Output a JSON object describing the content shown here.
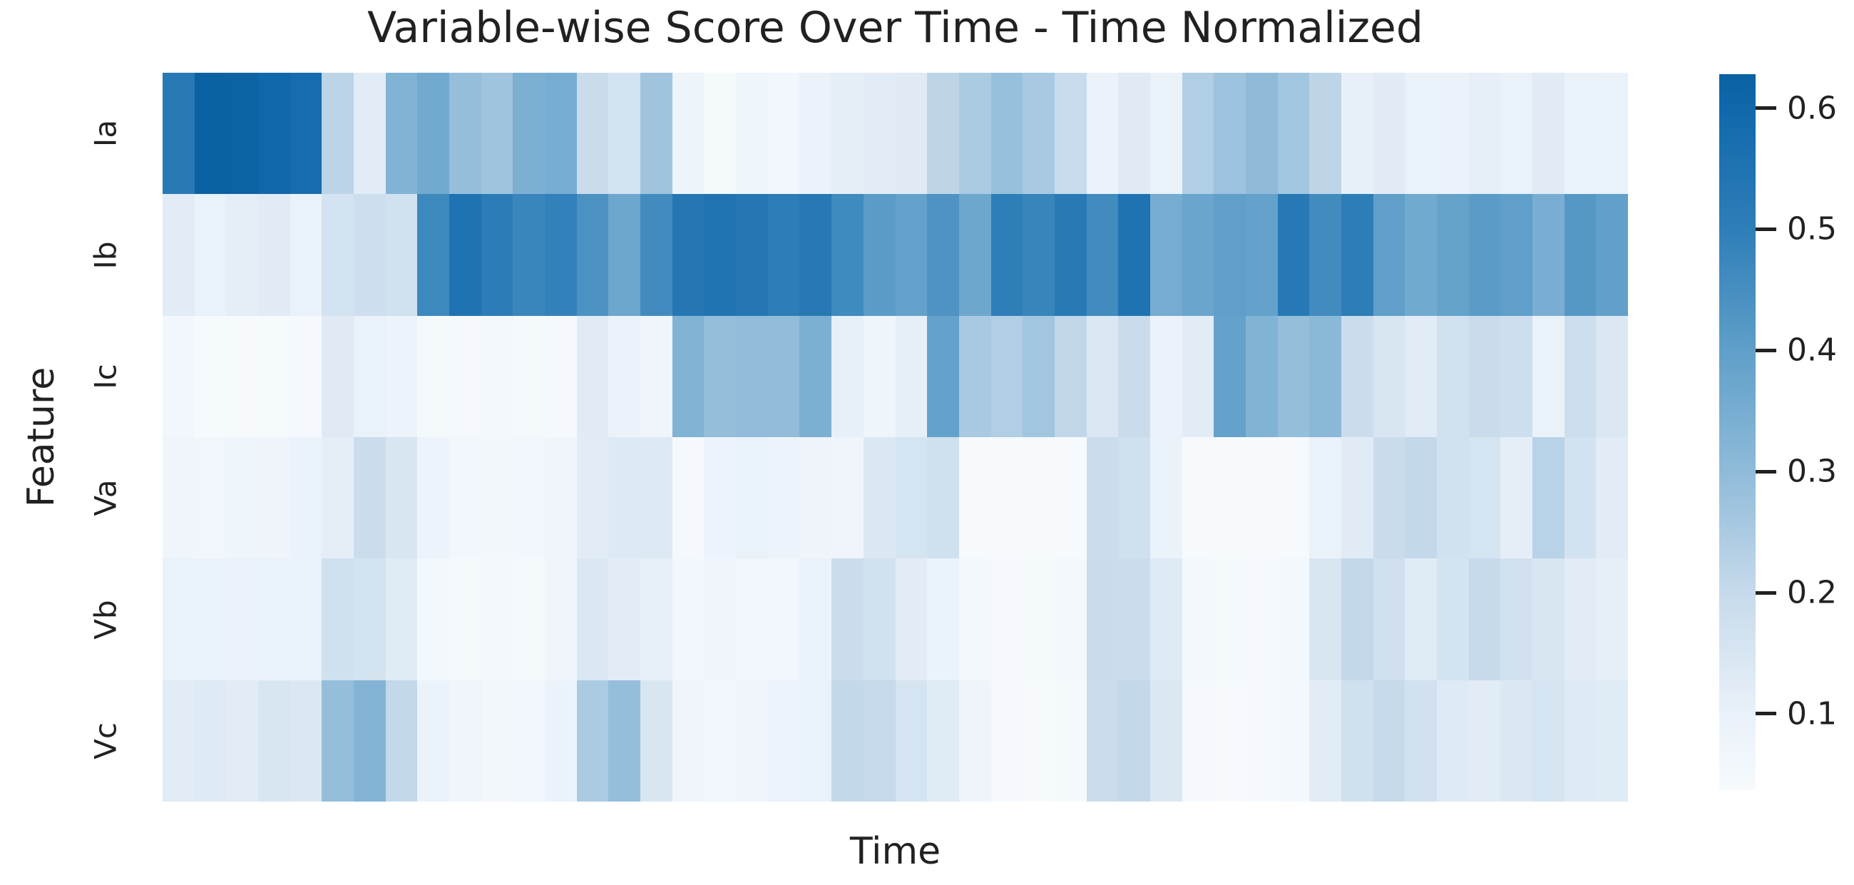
{
  "chart_data": {
    "type": "heatmap",
    "title": "Variable-wise Score Over Time - Time Normalized",
    "xlabel": "Time",
    "ylabel": "Feature",
    "rows": [
      "Ia",
      "Ib",
      "Ic",
      "Va",
      "Vb",
      "Vc"
    ],
    "n_time_steps": 46,
    "x_tick_labels": [],
    "grid": false,
    "colormap": "Blues",
    "vmin": 0.037,
    "vmax": 0.628,
    "series": [
      {
        "name": "Ia",
        "values": [
          0.52,
          0.63,
          0.625,
          0.6,
          0.58,
          0.22,
          0.12,
          0.33,
          0.36,
          0.29,
          0.27,
          0.34,
          0.35,
          0.19,
          0.16,
          0.27,
          0.08,
          0.045,
          0.075,
          0.06,
          0.09,
          0.115,
          0.12,
          0.13,
          0.215,
          0.25,
          0.285,
          0.255,
          0.195,
          0.09,
          0.13,
          0.1,
          0.24,
          0.275,
          0.3,
          0.265,
          0.215,
          0.105,
          0.125,
          0.1,
          0.09,
          0.11,
          0.1,
          0.125,
          0.095,
          0.1
        ]
      },
      {
        "name": "Ib",
        "values": [
          0.12,
          0.1,
          0.115,
          0.125,
          0.095,
          0.16,
          0.18,
          0.17,
          0.47,
          0.55,
          0.51,
          0.475,
          0.49,
          0.44,
          0.37,
          0.46,
          0.53,
          0.545,
          0.53,
          0.505,
          0.525,
          0.465,
          0.41,
          0.39,
          0.435,
          0.37,
          0.5,
          0.48,
          0.52,
          0.46,
          0.55,
          0.355,
          0.38,
          0.4,
          0.39,
          0.525,
          0.46,
          0.505,
          0.4,
          0.36,
          0.385,
          0.41,
          0.4,
          0.345,
          0.42,
          0.395
        ]
      },
      {
        "name": "Ic",
        "values": [
          0.06,
          0.04,
          0.035,
          0.04,
          0.042,
          0.13,
          0.1,
          0.085,
          0.045,
          0.043,
          0.05,
          0.045,
          0.042,
          0.125,
          0.09,
          0.07,
          0.33,
          0.29,
          0.295,
          0.295,
          0.34,
          0.105,
          0.075,
          0.11,
          0.39,
          0.255,
          0.24,
          0.265,
          0.21,
          0.14,
          0.19,
          0.09,
          0.12,
          0.39,
          0.33,
          0.29,
          0.31,
          0.185,
          0.15,
          0.12,
          0.17,
          0.19,
          0.18,
          0.095,
          0.18,
          0.14
        ]
      },
      {
        "name": "Va",
        "values": [
          0.072,
          0.065,
          0.075,
          0.078,
          0.088,
          0.112,
          0.185,
          0.15,
          0.085,
          0.06,
          0.055,
          0.06,
          0.07,
          0.12,
          0.133,
          0.133,
          0.042,
          0.085,
          0.095,
          0.085,
          0.078,
          0.07,
          0.14,
          0.158,
          0.175,
          0.038,
          0.035,
          0.035,
          0.038,
          0.185,
          0.175,
          0.088,
          0.035,
          0.035,
          0.038,
          0.035,
          0.095,
          0.125,
          0.19,
          0.205,
          0.17,
          0.158,
          0.112,
          0.225,
          0.165,
          0.12
        ]
      },
      {
        "name": "Vb",
        "values": [
          0.1,
          0.095,
          0.09,
          0.095,
          0.1,
          0.175,
          0.162,
          0.128,
          0.05,
          0.046,
          0.053,
          0.046,
          0.073,
          0.14,
          0.12,
          0.105,
          0.06,
          0.07,
          0.065,
          0.06,
          0.095,
          0.185,
          0.168,
          0.122,
          0.088,
          0.05,
          0.042,
          0.046,
          0.05,
          0.19,
          0.185,
          0.132,
          0.05,
          0.046,
          0.042,
          0.05,
          0.148,
          0.205,
          0.172,
          0.128,
          0.162,
          0.198,
          0.168,
          0.148,
          0.122,
          0.108
        ]
      },
      {
        "name": "Vc",
        "values": [
          0.122,
          0.132,
          0.122,
          0.148,
          0.14,
          0.29,
          0.325,
          0.205,
          0.088,
          0.072,
          0.055,
          0.065,
          0.088,
          0.25,
          0.29,
          0.148,
          0.073,
          0.065,
          0.073,
          0.085,
          0.1,
          0.205,
          0.198,
          0.158,
          0.128,
          0.078,
          0.042,
          0.036,
          0.046,
          0.185,
          0.205,
          0.14,
          0.042,
          0.036,
          0.042,
          0.05,
          0.122,
          0.172,
          0.198,
          0.168,
          0.132,
          0.122,
          0.14,
          0.158,
          0.132,
          0.128
        ]
      }
    ],
    "colorbar": {
      "ticks": [
        0.1,
        0.2,
        0.3,
        0.4,
        0.5,
        0.6
      ],
      "tick_labels": [
        "0.1",
        "0.2",
        "0.3",
        "0.4",
        "0.5",
        "0.6"
      ],
      "gradient_stops": [
        {
          "value": 0.037,
          "color": "#f6fafd"
        },
        {
          "value": 0.1,
          "color": "#e9f1f9"
        },
        {
          "value": 0.2,
          "color": "#c6daeb"
        },
        {
          "value": 0.3,
          "color": "#8fbbd9"
        },
        {
          "value": 0.4,
          "color": "#5f9fc9"
        },
        {
          "value": 0.5,
          "color": "#2e7eb8"
        },
        {
          "value": 0.6,
          "color": "#1068ab"
        },
        {
          "value": 0.628,
          "color": "#0a62a3"
        }
      ]
    },
    "text_color": "#212121",
    "background_color": "#ffffff"
  }
}
